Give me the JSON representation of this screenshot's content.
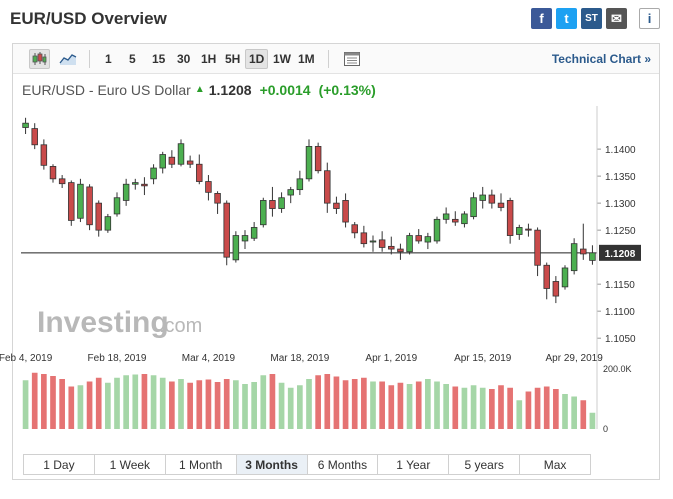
{
  "header": {
    "title": "EUR/USD Overview",
    "share": {
      "facebook": "f",
      "twitter": "t",
      "stocktwits": "ST",
      "mail": "✉",
      "info": "i"
    }
  },
  "toolbar": {
    "intervals": [
      "1",
      "5",
      "15",
      "30",
      "1H",
      "5H",
      "1D",
      "1W",
      "1M"
    ],
    "active_interval": "1D",
    "technical_link": "Technical Chart »"
  },
  "quote": {
    "name": "EUR/USD - Euro US Dollar",
    "price": "1.1208",
    "change": "+0.0014",
    "change_pct": "(+0.13%)"
  },
  "watermark": {
    "text": "Investing",
    "suffix": ".com"
  },
  "ranges": [
    "1 Day",
    "1 Week",
    "1 Month",
    "3 Months",
    "6 Months",
    "1 Year",
    "5 years",
    "Max"
  ],
  "active_range": "3 Months",
  "colors": {
    "up": "#4caf50",
    "down": "#c94a4a",
    "up_vol": "#a5d6a7",
    "down_vol": "#e57373"
  },
  "chart_data": {
    "type": "candlestick",
    "y_ticks": [
      "1.1400",
      "1.1350",
      "1.1300",
      "1.1250",
      "1.1150",
      "1.1100",
      "1.1050"
    ],
    "ylim": [
      1.103,
      1.1465
    ],
    "last_price_label": "1.1208",
    "last_price": 1.1208,
    "x_labels": [
      "Feb 4, 2019",
      "Feb 18, 2019",
      "Mar 4, 2019",
      "Mar 18, 2019",
      "Apr 1, 2019",
      "Apr 15, 2019",
      "Apr 29, 2019"
    ],
    "x_label_index": [
      0,
      10,
      20,
      30,
      40,
      50,
      60
    ],
    "volume_ticks": [
      "200.0K",
      "0"
    ],
    "volume_max": 240,
    "candles": [
      {
        "o": 1.144,
        "h": 1.1458,
        "l": 1.1428,
        "c": 1.1448
      },
      {
        "o": 1.1438,
        "h": 1.1448,
        "l": 1.14,
        "c": 1.1408
      },
      {
        "o": 1.1408,
        "h": 1.1418,
        "l": 1.1362,
        "c": 1.137
      },
      {
        "o": 1.1368,
        "h": 1.1372,
        "l": 1.1338,
        "c": 1.1345
      },
      {
        "o": 1.1345,
        "h": 1.1352,
        "l": 1.1328,
        "c": 1.1336
      },
      {
        "o": 1.1338,
        "h": 1.1342,
        "l": 1.1258,
        "c": 1.1268
      },
      {
        "o": 1.1272,
        "h": 1.1345,
        "l": 1.1265,
        "c": 1.1335
      },
      {
        "o": 1.133,
        "h": 1.1335,
        "l": 1.125,
        "c": 1.126
      },
      {
        "o": 1.13,
        "h": 1.1305,
        "l": 1.1238,
        "c": 1.125
      },
      {
        "o": 1.125,
        "h": 1.128,
        "l": 1.1245,
        "c": 1.1275
      },
      {
        "o": 1.128,
        "h": 1.132,
        "l": 1.1275,
        "c": 1.131
      },
      {
        "o": 1.1305,
        "h": 1.1345,
        "l": 1.1295,
        "c": 1.1335
      },
      {
        "o": 1.1335,
        "h": 1.1345,
        "l": 1.1325,
        "c": 1.1338
      },
      {
        "o": 1.1335,
        "h": 1.1348,
        "l": 1.1315,
        "c": 1.1332
      },
      {
        "o": 1.1345,
        "h": 1.1372,
        "l": 1.1335,
        "c": 1.1365
      },
      {
        "o": 1.1365,
        "h": 1.1395,
        "l": 1.1355,
        "c": 1.139
      },
      {
        "o": 1.1385,
        "h": 1.1398,
        "l": 1.1365,
        "c": 1.1372
      },
      {
        "o": 1.1372,
        "h": 1.1418,
        "l": 1.1368,
        "c": 1.141
      },
      {
        "o": 1.1378,
        "h": 1.1388,
        "l": 1.1365,
        "c": 1.1372
      },
      {
        "o": 1.1372,
        "h": 1.139,
        "l": 1.1335,
        "c": 1.134
      },
      {
        "o": 1.134,
        "h": 1.1352,
        "l": 1.1305,
        "c": 1.132
      },
      {
        "o": 1.1318,
        "h": 1.1322,
        "l": 1.128,
        "c": 1.13
      },
      {
        "o": 1.13,
        "h": 1.1305,
        "l": 1.1185,
        "c": 1.12
      },
      {
        "o": 1.1195,
        "h": 1.1248,
        "l": 1.119,
        "c": 1.124
      },
      {
        "o": 1.123,
        "h": 1.125,
        "l": 1.1215,
        "c": 1.124
      },
      {
        "o": 1.1235,
        "h": 1.1265,
        "l": 1.123,
        "c": 1.1255
      },
      {
        "o": 1.126,
        "h": 1.131,
        "l": 1.1255,
        "c": 1.1305
      },
      {
        "o": 1.1305,
        "h": 1.133,
        "l": 1.1275,
        "c": 1.129
      },
      {
        "o": 1.129,
        "h": 1.132,
        "l": 1.1282,
        "c": 1.131
      },
      {
        "o": 1.1315,
        "h": 1.133,
        "l": 1.13,
        "c": 1.1325
      },
      {
        "o": 1.1325,
        "h": 1.136,
        "l": 1.1315,
        "c": 1.1345
      },
      {
        "o": 1.1345,
        "h": 1.1418,
        "l": 1.134,
        "c": 1.1405
      },
      {
        "o": 1.1405,
        "h": 1.1412,
        "l": 1.1355,
        "c": 1.136
      },
      {
        "o": 1.136,
        "h": 1.1375,
        "l": 1.1282,
        "c": 1.13
      },
      {
        "o": 1.13,
        "h": 1.1312,
        "l": 1.128,
        "c": 1.129
      },
      {
        "o": 1.1305,
        "h": 1.1318,
        "l": 1.1255,
        "c": 1.1265
      },
      {
        "o": 1.126,
        "h": 1.1265,
        "l": 1.1235,
        "c": 1.1245
      },
      {
        "o": 1.1245,
        "h": 1.1258,
        "l": 1.1218,
        "c": 1.1225
      },
      {
        "o": 1.1228,
        "h": 1.124,
        "l": 1.121,
        "c": 1.123
      },
      {
        "o": 1.1232,
        "h": 1.1248,
        "l": 1.121,
        "c": 1.1218
      },
      {
        "o": 1.122,
        "h": 1.1238,
        "l": 1.1205,
        "c": 1.1215
      },
      {
        "o": 1.1215,
        "h": 1.1225,
        "l": 1.1195,
        "c": 1.121
      },
      {
        "o": 1.121,
        "h": 1.1245,
        "l": 1.1205,
        "c": 1.124
      },
      {
        "o": 1.124,
        "h": 1.1252,
        "l": 1.1225,
        "c": 1.123
      },
      {
        "o": 1.1228,
        "h": 1.1245,
        "l": 1.1215,
        "c": 1.1238
      },
      {
        "o": 1.123,
        "h": 1.1275,
        "l": 1.1225,
        "c": 1.127
      },
      {
        "o": 1.127,
        "h": 1.1292,
        "l": 1.1262,
        "c": 1.128
      },
      {
        "o": 1.127,
        "h": 1.1285,
        "l": 1.1258,
        "c": 1.1265
      },
      {
        "o": 1.1262,
        "h": 1.1285,
        "l": 1.1255,
        "c": 1.128
      },
      {
        "o": 1.1275,
        "h": 1.132,
        "l": 1.127,
        "c": 1.131
      },
      {
        "o": 1.1305,
        "h": 1.133,
        "l": 1.129,
        "c": 1.1315
      },
      {
        "o": 1.1315,
        "h": 1.1325,
        "l": 1.129,
        "c": 1.13
      },
      {
        "o": 1.13,
        "h": 1.1318,
        "l": 1.1285,
        "c": 1.1292
      },
      {
        "o": 1.1305,
        "h": 1.131,
        "l": 1.1225,
        "c": 1.124
      },
      {
        "o": 1.1242,
        "h": 1.126,
        "l": 1.1232,
        "c": 1.1255
      },
      {
        "o": 1.1252,
        "h": 1.1262,
        "l": 1.1238,
        "c": 1.125
      },
      {
        "o": 1.125,
        "h": 1.1255,
        "l": 1.1165,
        "c": 1.1185
      },
      {
        "o": 1.1185,
        "h": 1.119,
        "l": 1.1122,
        "c": 1.1142
      },
      {
        "o": 1.1155,
        "h": 1.1165,
        "l": 1.1115,
        "c": 1.1128
      },
      {
        "o": 1.1145,
        "h": 1.1185,
        "l": 1.114,
        "c": 1.118
      },
      {
        "o": 1.1175,
        "h": 1.1235,
        "l": 1.1168,
        "c": 1.1225
      },
      {
        "o": 1.1215,
        "h": 1.1262,
        "l": 1.1195,
        "c": 1.1206
      },
      {
        "o": 1.1194,
        "h": 1.1222,
        "l": 1.1186,
        "c": 1.1208
      }
    ],
    "volumes": [
      195,
      225,
      220,
      212,
      200,
      170,
      175,
      190,
      205,
      185,
      205,
      215,
      218,
      220,
      215,
      205,
      190,
      200,
      185,
      195,
      198,
      188,
      200,
      195,
      180,
      188,
      215,
      220,
      185,
      165,
      175,
      200,
      215,
      220,
      210,
      195,
      200,
      205,
      190,
      190,
      175,
      185,
      180,
      190,
      200,
      190,
      180,
      170,
      165,
      175,
      165,
      160,
      175,
      165,
      115,
      150,
      165,
      170,
      160,
      140,
      130,
      115,
      65
    ]
  }
}
